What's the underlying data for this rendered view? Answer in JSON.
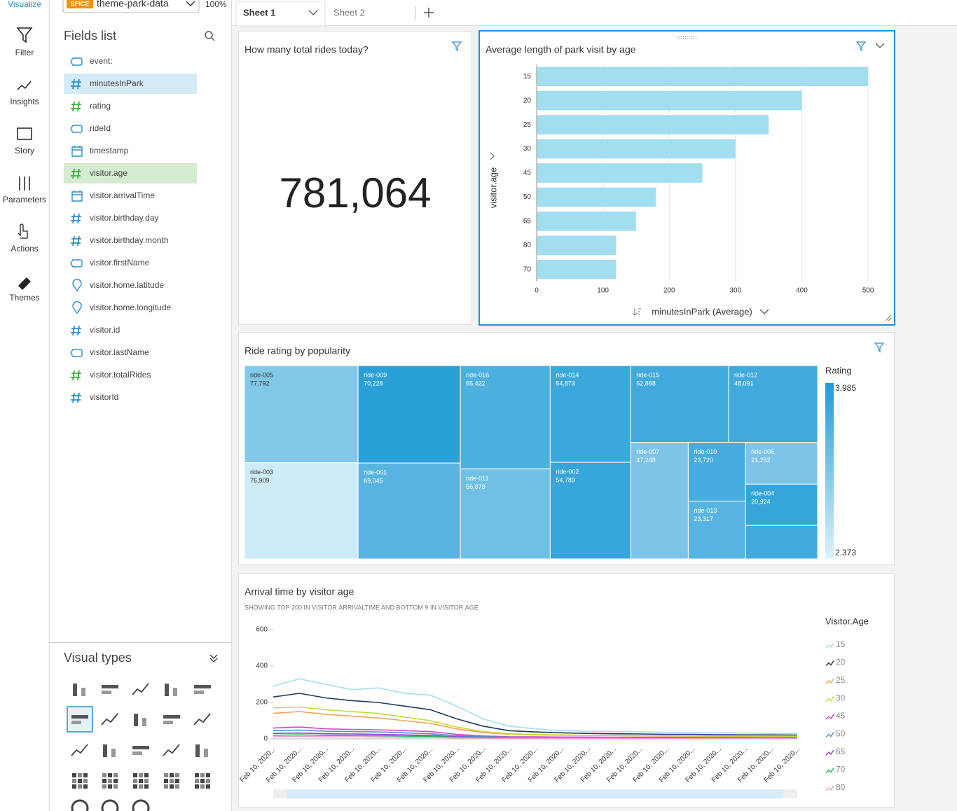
{
  "nav": [
    "Visualize",
    "Filter",
    "Insights",
    "Story",
    "Parameters",
    "Actions",
    "Themes"
  ],
  "dataset": {
    "badge": "SPICE",
    "name": "theme-park-data",
    "zoom": "100%"
  },
  "sheets": [
    "Sheet 1",
    "Sheet 2"
  ],
  "fields_list": {
    "title": "Fields list",
    "fields": [
      {
        "name": "event:",
        "icon": "string",
        "color": "#2a8fc9",
        "highlight": null
      },
      {
        "name": "minutesInPark",
        "icon": "number",
        "color": "#2a8fc9",
        "highlight": "#d4eaf7"
      },
      {
        "name": "rating",
        "icon": "number",
        "color": "#3cae3c",
        "highlight": null
      },
      {
        "name": "rideId",
        "icon": "string",
        "color": "#2a8fc9",
        "highlight": null
      },
      {
        "name": "timestamp",
        "icon": "date",
        "color": "#2a8fc9",
        "highlight": null
      },
      {
        "name": "visitor.age",
        "icon": "number",
        "color": "#3cae3c",
        "highlight": "#d5ecd0"
      },
      {
        "name": "visitor.arrivalTime",
        "icon": "date",
        "color": "#2a8fc9",
        "highlight": null
      },
      {
        "name": "visitor.birthday.day",
        "icon": "number",
        "color": "#2a8fc9",
        "highlight": null
      },
      {
        "name": "visitor.birthday.month",
        "icon": "number",
        "color": "#2a8fc9",
        "highlight": null
      },
      {
        "name": "visitor.firstName",
        "icon": "string",
        "color": "#2a8fc9",
        "highlight": null
      },
      {
        "name": "visitor.home.latitude",
        "icon": "geo",
        "color": "#2a8fc9",
        "highlight": null
      },
      {
        "name": "visitor.home.longitude",
        "icon": "geo",
        "color": "#2a8fc9",
        "highlight": null
      },
      {
        "name": "visitor.id",
        "icon": "number",
        "color": "#2a8fc9",
        "highlight": null
      },
      {
        "name": "visitor.lastName",
        "icon": "string",
        "color": "#2a8fc9",
        "highlight": null
      },
      {
        "name": "visitor.totalRides",
        "icon": "number",
        "color": "#3cae3c",
        "highlight": null
      },
      {
        "name": "visitorId",
        "icon": "number",
        "color": "#2a8fc9",
        "highlight": null
      }
    ]
  },
  "visual_types": {
    "title": "Visual types"
  },
  "kpi": {
    "title": "How many total rides today?",
    "value": "781,064"
  },
  "chart_data": [
    {
      "type": "hbar",
      "title": "Average length of park visit by age",
      "x_label": "minutesInPark (Average)",
      "y_label": "visitor.age",
      "categories": [
        "15",
        "20",
        "25",
        "30",
        "45",
        "50",
        "65",
        "80",
        "70"
      ],
      "values": [
        500,
        400,
        350,
        300,
        250,
        180,
        150,
        120,
        120
      ],
      "color": "#a3ddf0",
      "xlim": [
        0,
        520
      ],
      "xticks": [
        0,
        100,
        200,
        300,
        400,
        500
      ],
      "grid": true
    },
    {
      "type": "treemap",
      "title": "Ride rating by popularity",
      "legend_title": "Rating",
      "categories": [
        "ride-005",
        "ride-003",
        "ride-009",
        "ride-001",
        "ride-016",
        "ride-011",
        "ride-014",
        "ride-002",
        "ride-015",
        "ride-012",
        "ride-007",
        "ride-010",
        "ride-013",
        "ride-006",
        "ride-004",
        null
      ],
      "values": [
        77792,
        76909,
        70228,
        69045,
        65422,
        56878,
        54873,
        54789,
        52868,
        48091,
        47248,
        23720,
        23317,
        21252,
        20924,
        17000
      ],
      "value_labels": [
        "77,792",
        "76,909",
        "70,228",
        "69,045",
        "65,422",
        "56,878",
        "54,873",
        "54,789",
        "52,868",
        "48,091",
        "47,248",
        "23,720",
        "23,317",
        "21,252",
        "20,924",
        null
      ],
      "ratings": [
        3.15,
        2.5,
        3.9,
        3.5,
        3.6,
        3.3,
        3.75,
        3.8,
        3.7,
        3.7,
        3.2,
        3.65,
        3.5,
        3.2,
        3.8,
        3.7
      ],
      "color_scale": [
        "#ddf2fb",
        "#1f9bd6"
      ],
      "color_range": [
        2.373,
        3.985
      ]
    },
    {
      "type": "line",
      "title": "Arrival time by visitor age",
      "subtitle": "SHOWING TOP 200 IN VISITOR.ARRIVALTIME AND BOTTOM 9 IN VISITOR.AGE",
      "legend_title": "Visitor.Age",
      "categories": [
        "Feb 10, 2020...",
        "Feb 10, 2020...",
        "Feb 10, 2020...",
        "Feb 10, 2020...",
        "Feb 10, 2020...",
        "Feb 10, 2020...",
        "Feb 10, 2020...",
        "Feb 10, 2020...",
        "Feb 10, 2020...",
        "Feb 10, 2020...",
        "Feb 10, 2020...",
        "Feb 10, 2020...",
        "Feb 10, 2020...",
        "Feb 10, 2020...",
        "Feb 10, 2020...",
        "Feb 10, 2020...",
        "Feb 10, 2020...",
        "Feb 10, 2020...",
        "Feb 10, 2020...",
        "Feb 10, 2020...",
        "Feb 10, 2020..."
      ],
      "ylim": [
        0,
        600
      ],
      "yticks": [
        0,
        200,
        400,
        600
      ],
      "series": [
        {
          "name": "15",
          "color": "#a6dcf0",
          "values": [
            290,
            330,
            300,
            270,
            280,
            250,
            240,
            180,
            110,
            70,
            55,
            45,
            42,
            40,
            38,
            36,
            35,
            33,
            32,
            30,
            30
          ]
        },
        {
          "name": "20",
          "color": "#1f3b57",
          "values": [
            230,
            250,
            225,
            210,
            200,
            180,
            160,
            110,
            70,
            45,
            38,
            33,
            30,
            28,
            27,
            25,
            25,
            23,
            22,
            22,
            21
          ]
        },
        {
          "name": "25",
          "color": "#f7a350",
          "values": [
            140,
            150,
            135,
            125,
            115,
            100,
            85,
            55,
            35,
            25,
            22,
            20,
            19,
            18,
            17,
            16,
            15,
            15,
            14,
            14,
            13
          ]
        },
        {
          "name": "30",
          "color": "#c6d93a",
          "values": [
            170,
            175,
            160,
            150,
            140,
            120,
            100,
            65,
            40,
            28,
            24,
            22,
            20,
            19,
            18,
            17,
            16,
            16,
            15,
            15,
            14
          ]
        },
        {
          "name": "45",
          "color": "#e040c8",
          "values": [
            60,
            65,
            55,
            52,
            50,
            45,
            40,
            25,
            16,
            12,
            11,
            10,
            10,
            9,
            9,
            9,
            8,
            8,
            8,
            7,
            7
          ]
        },
        {
          "name": "50",
          "color": "#4f8fd6",
          "values": [
            45,
            48,
            42,
            40,
            38,
            33,
            28,
            18,
            12,
            10,
            9,
            8,
            8,
            8,
            7,
            7,
            7,
            6,
            6,
            6,
            6
          ]
        },
        {
          "name": "65",
          "color": "#8a3fd6",
          "values": [
            30,
            32,
            28,
            27,
            25,
            22,
            19,
            12,
            8,
            7,
            6,
            6,
            6,
            5,
            5,
            5,
            5,
            5,
            4,
            4,
            4
          ]
        },
        {
          "name": "70",
          "color": "#36b05a",
          "values": [
            20,
            22,
            19,
            18,
            17,
            15,
            13,
            9,
            6,
            5,
            5,
            4,
            4,
            4,
            4,
            4,
            3,
            3,
            3,
            3,
            3
          ]
        },
        {
          "name": "80",
          "color": "#f0a0c8",
          "values": [
            12,
            13,
            11,
            11,
            10,
            9,
            8,
            5,
            4,
            3,
            3,
            3,
            3,
            3,
            2,
            2,
            2,
            2,
            2,
            2,
            2
          ]
        }
      ]
    }
  ]
}
